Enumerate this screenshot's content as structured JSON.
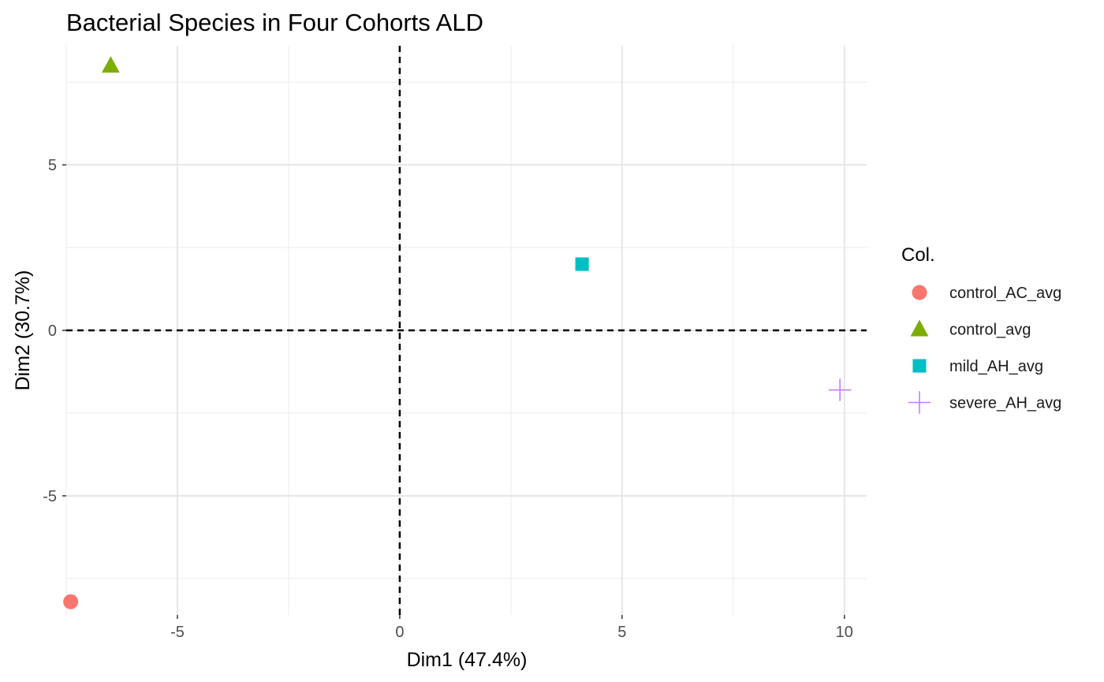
{
  "chart_data": {
    "type": "scatter",
    "title": "Bacterial Species in Four Cohorts ALD",
    "xlabel": "Dim1 (47.4%)",
    "ylabel": "Dim2 (30.7%)",
    "xlim": [
      -7.5,
      10.5
    ],
    "ylim": [
      -8.6,
      8.6
    ],
    "x_ticks": [
      -5,
      0,
      5,
      10
    ],
    "x_tick_labels": [
      "-5",
      "0",
      "5",
      "10"
    ],
    "y_ticks": [
      -5,
      0,
      5
    ],
    "y_tick_labels": [
      "-5",
      "0",
      "5"
    ],
    "grid": true,
    "reference_lines": {
      "x": 0,
      "y": 0,
      "style": "dashed"
    },
    "legend": {
      "title": "Col.",
      "position": "right"
    },
    "series": [
      {
        "name": "control_AC_avg",
        "shape": "circle",
        "color": "#F8766D",
        "x": [
          -7.4
        ],
        "y": [
          -8.2
        ]
      },
      {
        "name": "control_avg",
        "shape": "triangle",
        "color": "#7CAE00",
        "x": [
          -6.5
        ],
        "y": [
          8.0
        ]
      },
      {
        "name": "mild_AH_avg",
        "shape": "square",
        "color": "#00BFC4",
        "x": [
          4.1
        ],
        "y": [
          2.0
        ]
      },
      {
        "name": "severe_AH_avg",
        "shape": "plus",
        "color": "#C77CFF",
        "x": [
          9.9
        ],
        "y": [
          -1.8
        ]
      }
    ]
  }
}
